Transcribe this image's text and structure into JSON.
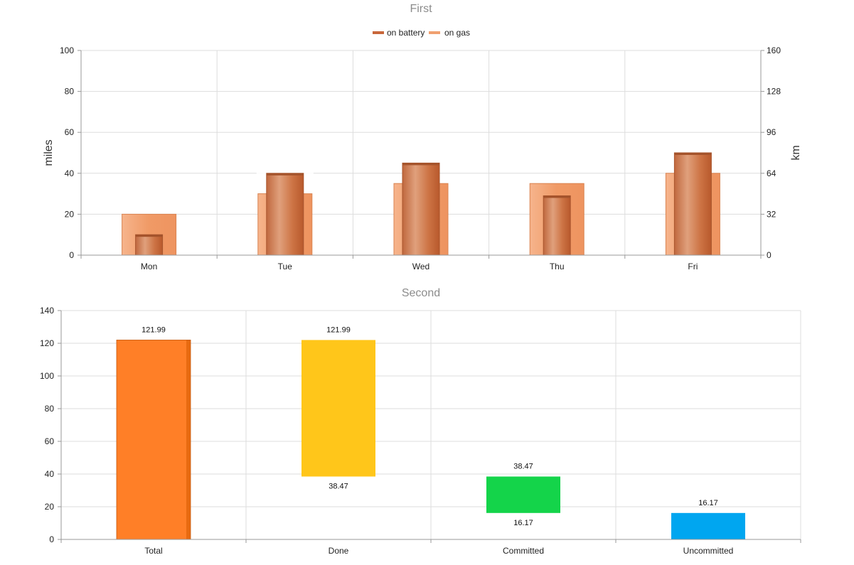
{
  "chart_data": [
    {
      "type": "bar",
      "title": "First",
      "categories": [
        "Mon",
        "Tue",
        "Wed",
        "Thu",
        "Fri"
      ],
      "series": [
        {
          "name": "on battery",
          "values": [
            10,
            40,
            45,
            29,
            50
          ],
          "color": "#c8673a"
        },
        {
          "name": "on gas",
          "values": [
            20,
            30,
            35,
            35,
            40
          ],
          "color": "#f0a070"
        }
      ],
      "ylabel": "miles",
      "ylim": [
        0,
        100
      ],
      "yticks": [
        "0",
        "20",
        "40",
        "60",
        "80",
        "100"
      ],
      "y2label": "km",
      "y2lim": [
        0,
        160
      ],
      "y2ticks": [
        "0",
        "32",
        "64",
        "96",
        "128",
        "160"
      ],
      "legend": "top-center",
      "grid": true
    },
    {
      "type": "bar",
      "title": "Second",
      "categories": [
        "Total",
        "Done",
        "Committed",
        "Uncommitted"
      ],
      "ranges": [
        {
          "low": 0,
          "high": 121.99,
          "low_label": "",
          "high_label": "121.99",
          "color": "#ff7f27"
        },
        {
          "low": 38.47,
          "high": 121.99,
          "low_label": "38.47",
          "high_label": "121.99",
          "color": "#ffc61a"
        },
        {
          "low": 16.17,
          "high": 38.47,
          "low_label": "16.17",
          "high_label": "38.47",
          "color": "#14d44a"
        },
        {
          "low": 0,
          "high": 16.17,
          "low_label": "",
          "high_label": "16.17",
          "color": "#00a6f0"
        }
      ],
      "ylim": [
        0,
        140
      ],
      "yticks": [
        "0",
        "20",
        "40",
        "60",
        "80",
        "100",
        "120",
        "140"
      ],
      "grid": true
    }
  ]
}
